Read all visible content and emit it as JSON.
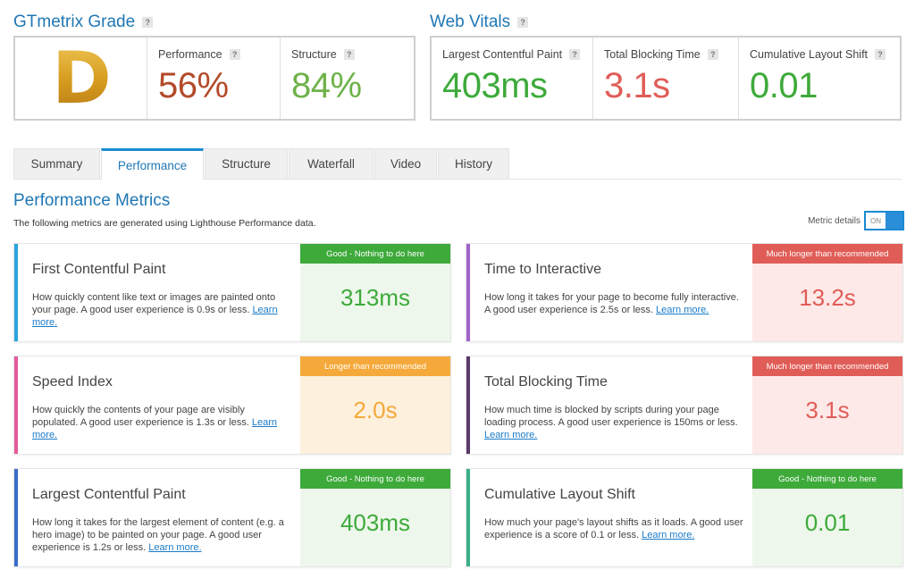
{
  "grade": {
    "title": "GTmetrix Grade",
    "letter": "D",
    "performance_label": "Performance",
    "performance_value": "56%",
    "structure_label": "Structure",
    "structure_value": "84%"
  },
  "web_vitals": {
    "title": "Web Vitals",
    "lcp_label": "Largest Contentful Paint",
    "lcp_value": "403ms",
    "tbt_label": "Total Blocking Time",
    "tbt_value": "3.1s",
    "cls_label": "Cumulative Layout Shift",
    "cls_value": "0.01"
  },
  "help_glyph": "?",
  "tabs": [
    "Summary",
    "Performance",
    "Structure",
    "Waterfall",
    "Video",
    "History"
  ],
  "performance_metrics": {
    "title": "Performance Metrics",
    "description": "The following metrics are generated using Lighthouse Performance data.",
    "details_label": "Metric details",
    "toggle_state": "ON"
  },
  "cards": [
    {
      "name": "First Contentful Paint",
      "desc": "How quickly content like text or images are painted onto your page. A good user experience is 0.9s or less.",
      "link": "Learn more.",
      "badge": "Good - Nothing to do here",
      "value": "313ms"
    },
    {
      "name": "Time to Interactive",
      "desc": "How long it takes for your page to become fully interactive. A good user experience is 2.5s or less.",
      "link": "Learn more.",
      "badge": "Much longer than recommended",
      "value": "13.2s"
    },
    {
      "name": "Speed Index",
      "desc": "How quickly the contents of your page are visibly populated. A good user experience is 1.3s or less.",
      "link": "Learn more.",
      "badge": "Longer than recommended",
      "value": "2.0s"
    },
    {
      "name": "Total Blocking Time",
      "desc": "How much time is blocked by scripts during your page loading process. A good user experience is 150ms or less.",
      "link": "Learn more.",
      "badge": "Much longer than recommended",
      "value": "3.1s"
    },
    {
      "name": "Largest Contentful Paint",
      "desc": "How long it takes for the largest element of content (e.g. a hero image) to be painted on your page. A good user experience is 1.2s or less.",
      "link": "Learn more.",
      "badge": "Good - Nothing to do here",
      "value": "403ms"
    },
    {
      "name": "Cumulative Layout Shift",
      "desc": "How much your page's layout shifts as it loads. A good user experience is a score of 0.1 or less.",
      "link": "Learn more.",
      "badge": "Good - Nothing to do here",
      "value": "0.01"
    }
  ],
  "colors": {
    "accent": "#1f77b4",
    "good": "#3daa3a",
    "bad": "#e05d57",
    "warn": "#f5a93a",
    "performance_value": "#b34a2a",
    "structure_value": "#6fb24a"
  }
}
